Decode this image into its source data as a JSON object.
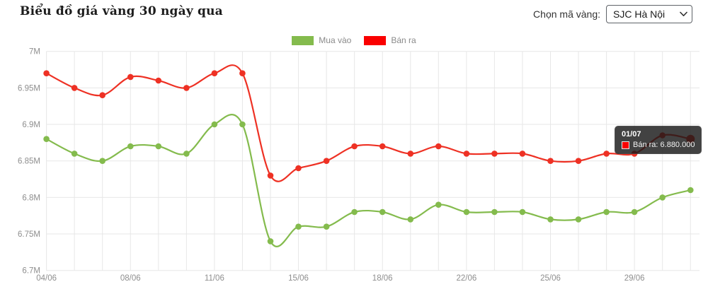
{
  "header": {
    "title": "Biểu đồ giá vàng 30 ngày qua"
  },
  "controls": {
    "select_label": "Chọn mã vàng:",
    "selected_option": "SJC Hà Nội"
  },
  "legend": {
    "buy_label": "Mua vào",
    "sell_label": "Bán ra"
  },
  "tooltip": {
    "date": "01/07",
    "series": "Bán ra",
    "text": "Bán ra: 6.880.000",
    "swatch_color": "#fa0000"
  },
  "colors": {
    "buy": "#84bb4d",
    "sell": "#ee3124",
    "legend_buy": "#84bb4d",
    "legend_sell": "#fa0000",
    "grid": "#e7e7e7",
    "axis_text": "#8e8e8e"
  },
  "chart_data": {
    "type": "line",
    "title": "Biểu đồ giá vàng 30 ngày qua",
    "unit": "million VND",
    "x": [
      "04/06",
      "05/06",
      "06/06",
      "08/06",
      "09/06",
      "10/06",
      "11/06",
      "12/06",
      "13/06",
      "15/06",
      "16/06",
      "17/06",
      "18/06",
      "19/06",
      "20/06",
      "22/06",
      "23/06",
      "24/06",
      "25/06",
      "26/06",
      "27/06",
      "29/06",
      "30/06",
      "01/07"
    ],
    "series": [
      {
        "name": "Mua vào",
        "color": "#84bb4d",
        "values": [
          6.88,
          6.86,
          6.85,
          6.87,
          6.87,
          6.86,
          6.9,
          6.9,
          6.74,
          6.76,
          6.76,
          6.78,
          6.78,
          6.77,
          6.79,
          6.78,
          6.78,
          6.78,
          6.77,
          6.77,
          6.78,
          6.78,
          6.8,
          6.81
        ]
      },
      {
        "name": "Bán ra",
        "color": "#ee3124",
        "values": [
          6.97,
          6.95,
          6.94,
          6.965,
          6.96,
          6.95,
          6.97,
          6.97,
          6.83,
          6.84,
          6.85,
          6.87,
          6.87,
          6.86,
          6.87,
          6.86,
          6.86,
          6.86,
          6.85,
          6.85,
          6.86,
          6.86,
          6.885,
          6.88
        ]
      }
    ],
    "ylim": [
      6.7,
      7.0
    ],
    "ytick_labels": [
      "6.7M",
      "6.75M",
      "6.8M",
      "6.85M",
      "6.9M",
      "6.95M",
      "7M"
    ],
    "xtick_labels": [
      "04/06",
      "08/06",
      "11/06",
      "15/06",
      "18/06",
      "22/06",
      "25/06",
      "29/06"
    ],
    "xtick_every": 3,
    "grid": true,
    "legend_position": "top-center",
    "highlight_point": {
      "series": "Bán ra",
      "x": "01/07",
      "value": 6.88
    }
  }
}
